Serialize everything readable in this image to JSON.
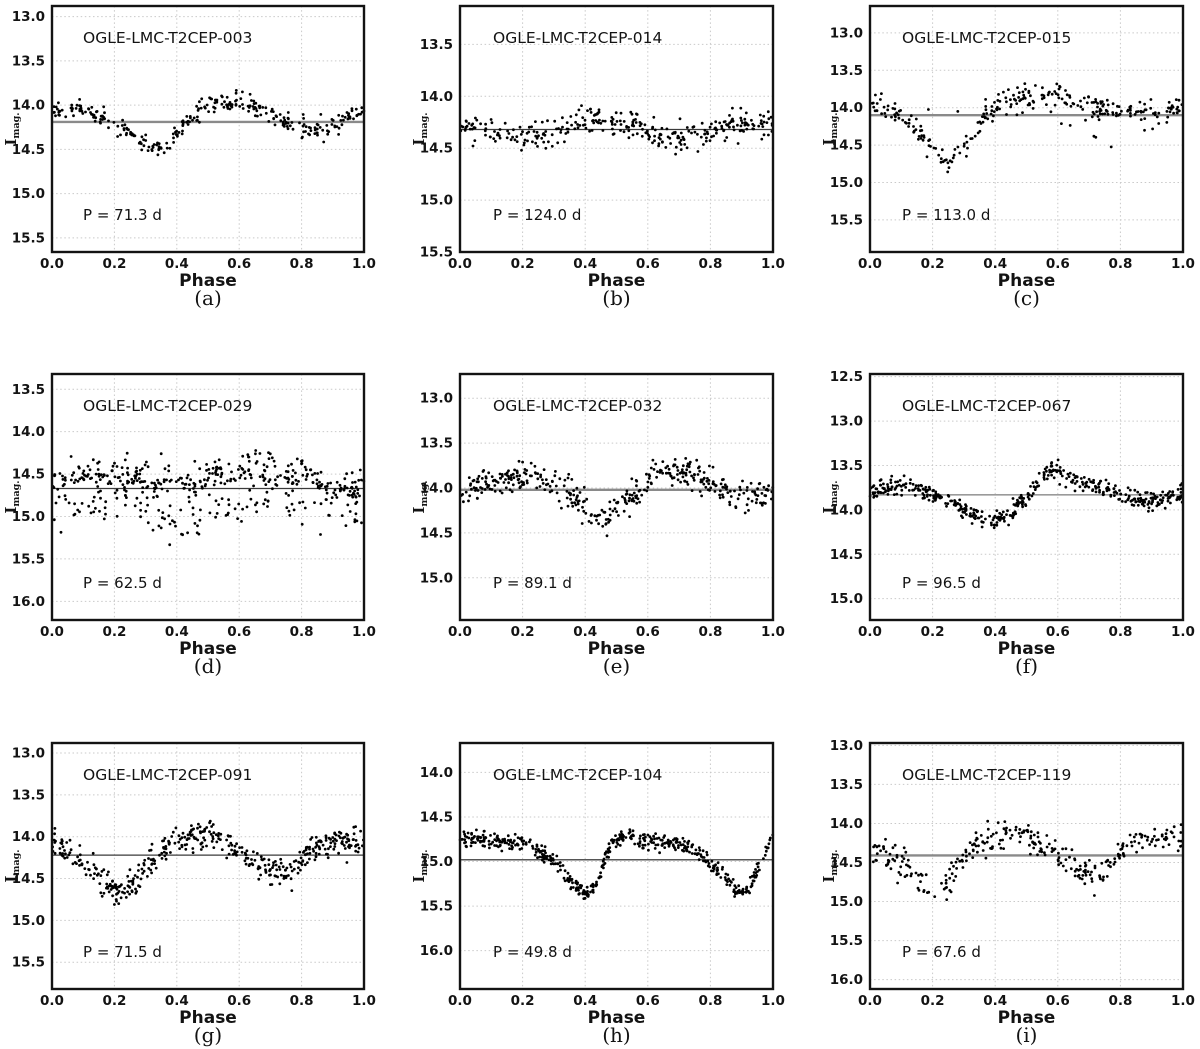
{
  "figure": {
    "background": "#ffffff",
    "colors": {
      "points": "#000000",
      "grid": "#c9c9c9",
      "frame": "#131313"
    }
  },
  "chart_data": {
    "type": "scatter",
    "description": "3x3 grid of phased I-band light curves of OGLE LMC Type II Cepheids; magnitude axis inverted (brighter up); gray horizontal line marks mean magnitude",
    "grid": true,
    "xlabel": "Phase",
    "ylabel_main": "I",
    "ylabel_sub": "mag.",
    "xlim": [
      0,
      1
    ],
    "xtick_labels": [
      "0.0",
      "0.2",
      "0.4",
      "0.6",
      "0.8",
      "1.0"
    ],
    "panels": [
      {
        "caption": "(a)",
        "title": "OGLE-LMC-T2CEP-003",
        "period_label": "P = 71.3 d",
        "period_days": 71.3,
        "ytick_labels": [
          "13.0",
          "13.5",
          "14.0",
          "14.5",
          "15.0",
          "15.5"
        ],
        "ylim": [
          12.88,
          15.66
        ],
        "mean_mag": 14.19,
        "mean_line": {
          "color": "#8a8a8a",
          "width": 2.4
        },
        "n_points": 310,
        "scatter_sigma": 0.055,
        "seed": 11,
        "mean_curve": [
          [
            0,
            14.07
          ],
          [
            0.06,
            14.04
          ],
          [
            0.12,
            14.08
          ],
          [
            0.18,
            14.16
          ],
          [
            0.24,
            14.3
          ],
          [
            0.3,
            14.44
          ],
          [
            0.34,
            14.48
          ],
          [
            0.38,
            14.42
          ],
          [
            0.42,
            14.25
          ],
          [
            0.46,
            14.1
          ],
          [
            0.5,
            14.0
          ],
          [
            0.55,
            13.93
          ],
          [
            0.6,
            13.98
          ],
          [
            0.66,
            14.05
          ],
          [
            0.72,
            14.15
          ],
          [
            0.78,
            14.25
          ],
          [
            0.84,
            14.3
          ],
          [
            0.88,
            14.27
          ],
          [
            0.92,
            14.18
          ],
          [
            0.96,
            14.1
          ],
          [
            1,
            14.07
          ]
        ]
      },
      {
        "caption": "(b)",
        "title": "OGLE-LMC-T2CEP-014",
        "period_label": "P = 124.0 d",
        "period_days": 124.0,
        "ytick_labels": [
          "13.5",
          "14.0",
          "14.5",
          "15.0",
          "15.5"
        ],
        "ylim": [
          13.13,
          15.5
        ],
        "mean_mag": 14.32,
        "mean_line": {
          "color": "#3a3a3a",
          "width": 1.2
        },
        "n_points": 320,
        "scatter_sigma": 0.07,
        "seed": 22,
        "mean_curve": [
          [
            0,
            14.3
          ],
          [
            0.08,
            14.33
          ],
          [
            0.15,
            14.38
          ],
          [
            0.22,
            14.4
          ],
          [
            0.3,
            14.33
          ],
          [
            0.36,
            14.27
          ],
          [
            0.42,
            14.22
          ],
          [
            0.48,
            14.25
          ],
          [
            0.54,
            14.28
          ],
          [
            0.6,
            14.35
          ],
          [
            0.66,
            14.42
          ],
          [
            0.72,
            14.42
          ],
          [
            0.78,
            14.35
          ],
          [
            0.85,
            14.28
          ],
          [
            0.92,
            14.25
          ],
          [
            1,
            14.26
          ]
        ]
      },
      {
        "caption": "(c)",
        "title": "OGLE-LMC-T2CEP-015",
        "period_label": "P = 113.0 d",
        "period_days": 113.0,
        "ytick_labels": [
          "13.0",
          "13.5",
          "14.0",
          "14.5",
          "15.0",
          "15.5"
        ],
        "ylim": [
          12.64,
          15.93
        ],
        "mean_mag": 14.1,
        "mean_line": {
          "color": "#8a8a8a",
          "width": 2.4
        },
        "n_points": 270,
        "scatter_sigma": 0.07,
        "seed": 33,
        "mean_curve": [
          [
            0,
            14.0
          ],
          [
            0.05,
            14.03
          ],
          [
            0.1,
            14.1
          ],
          [
            0.15,
            14.28
          ],
          [
            0.2,
            14.55
          ],
          [
            0.24,
            14.7
          ],
          [
            0.28,
            14.62
          ],
          [
            0.32,
            14.42
          ],
          [
            0.36,
            14.15
          ],
          [
            0.4,
            13.98
          ],
          [
            0.44,
            13.86
          ],
          [
            0.5,
            13.8
          ],
          [
            0.56,
            13.82
          ],
          [
            0.62,
            13.88
          ],
          [
            0.68,
            13.95
          ],
          [
            0.74,
            14.02
          ],
          [
            0.8,
            14.03
          ],
          [
            0.86,
            14.02
          ],
          [
            0.92,
            14.02
          ],
          [
            1,
            13.98
          ]
        ],
        "extra": {
          "mean_curve": [
            [
              0.58,
              14.05
            ],
            [
              0.66,
              14.25
            ],
            [
              0.72,
              14.4
            ],
            [
              0.78,
              14.48
            ],
            [
              0.84,
              14.38
            ],
            [
              0.9,
              14.2
            ]
          ],
          "scatter_sigma": 0.05,
          "n_points": 20
        }
      },
      {
        "caption": "(d)",
        "title": "OGLE-LMC-T2CEP-029",
        "period_label": "P = 62.5 d",
        "period_days": 62.5,
        "ytick_labels": [
          "13.5",
          "14.0",
          "14.5",
          "15.0",
          "15.5",
          "16.0"
        ],
        "ylim": [
          13.32,
          16.22
        ],
        "mean_mag": 14.67,
        "mean_line": {
          "color": "#3a3a3a",
          "width": 1.2
        },
        "n_points": 340,
        "scatter_sigma": 0.1,
        "seed": 44,
        "mean_curve": [
          [
            0,
            14.6
          ],
          [
            0.06,
            14.53
          ],
          [
            0.12,
            14.5
          ],
          [
            0.18,
            14.5
          ],
          [
            0.24,
            14.52
          ],
          [
            0.3,
            14.55
          ],
          [
            0.36,
            14.6
          ],
          [
            0.42,
            14.62
          ],
          [
            0.48,
            14.6
          ],
          [
            0.54,
            14.52
          ],
          [
            0.6,
            14.42
          ],
          [
            0.66,
            14.4
          ],
          [
            0.72,
            14.45
          ],
          [
            0.78,
            14.5
          ],
          [
            0.84,
            14.55
          ],
          [
            0.9,
            14.65
          ],
          [
            0.96,
            14.68
          ],
          [
            1,
            14.65
          ]
        ],
        "extra": {
          "mean_curve": [
            [
              0,
              15.0
            ],
            [
              0.08,
              14.95
            ],
            [
              0.16,
              14.8
            ],
            [
              0.24,
              14.85
            ],
            [
              0.32,
              14.95
            ],
            [
              0.4,
              15.05
            ],
            [
              0.46,
              15.05
            ],
            [
              0.52,
              14.95
            ],
            [
              0.6,
              14.8
            ],
            [
              0.7,
              14.78
            ],
            [
              0.8,
              14.85
            ],
            [
              0.9,
              14.95
            ],
            [
              1,
              15.0
            ]
          ],
          "scatter_sigma": 0.12,
          "n_points": 130
        }
      },
      {
        "caption": "(e)",
        "title": "OGLE-LMC-T2CEP-032",
        "period_label": "P = 89.1 d",
        "period_days": 89.1,
        "ytick_labels": [
          "13.0",
          "13.5",
          "14.0",
          "14.5",
          "15.0"
        ],
        "ylim": [
          12.73,
          15.47
        ],
        "mean_mag": 14.02,
        "mean_line": {
          "color": "#8a8a8a",
          "width": 2.4
        },
        "n_points": 390,
        "scatter_sigma": 0.08,
        "seed": 55,
        "mean_curve": [
          [
            0,
            14.05
          ],
          [
            0.05,
            14.0
          ],
          [
            0.1,
            13.93
          ],
          [
            0.16,
            13.88
          ],
          [
            0.22,
            13.87
          ],
          [
            0.27,
            13.92
          ],
          [
            0.32,
            14.0
          ],
          [
            0.37,
            14.12
          ],
          [
            0.42,
            14.3
          ],
          [
            0.45,
            14.35
          ],
          [
            0.49,
            14.28
          ],
          [
            0.53,
            14.15
          ],
          [
            0.57,
            14.0
          ],
          [
            0.62,
            13.85
          ],
          [
            0.67,
            13.8
          ],
          [
            0.72,
            13.82
          ],
          [
            0.77,
            13.87
          ],
          [
            0.82,
            13.95
          ],
          [
            0.87,
            14.02
          ],
          [
            0.92,
            14.08
          ],
          [
            0.96,
            14.1
          ],
          [
            1,
            14.07
          ]
        ]
      },
      {
        "caption": "(f)",
        "title": "OGLE-LMC-T2CEP-067",
        "period_label": "P = 96.5 d",
        "period_days": 96.5,
        "ytick_labels": [
          "12.5",
          "13.0",
          "13.5",
          "14.0",
          "14.5",
          "15.0"
        ],
        "ylim": [
          12.47,
          15.24
        ],
        "mean_mag": 13.83,
        "mean_line": {
          "color": "#9a9a9a",
          "width": 1.6
        },
        "n_points": 460,
        "scatter_sigma": 0.05,
        "seed": 66,
        "mean_curve": [
          [
            0,
            13.8
          ],
          [
            0.05,
            13.76
          ],
          [
            0.1,
            13.73
          ],
          [
            0.15,
            13.76
          ],
          [
            0.2,
            13.82
          ],
          [
            0.25,
            13.9
          ],
          [
            0.3,
            14.0
          ],
          [
            0.35,
            14.1
          ],
          [
            0.38,
            14.13
          ],
          [
            0.42,
            14.1
          ],
          [
            0.46,
            14.0
          ],
          [
            0.5,
            13.85
          ],
          [
            0.54,
            13.67
          ],
          [
            0.58,
            13.55
          ],
          [
            0.62,
            13.6
          ],
          [
            0.67,
            13.67
          ],
          [
            0.72,
            13.72
          ],
          [
            0.77,
            13.78
          ],
          [
            0.82,
            13.87
          ],
          [
            0.87,
            13.91
          ],
          [
            0.92,
            13.88
          ],
          [
            0.96,
            13.85
          ],
          [
            1,
            13.82
          ]
        ]
      },
      {
        "caption": "(g)",
        "title": "OGLE-LMC-T2CEP-091",
        "period_label": "P = 71.5 d",
        "period_days": 71.5,
        "ytick_labels": [
          "13.0",
          "13.5",
          "14.0",
          "14.5",
          "15.0",
          "15.5"
        ],
        "ylim": [
          12.88,
          15.82
        ],
        "mean_mag": 14.22,
        "mean_line": {
          "color": "#3a3a3a",
          "width": 1.2
        },
        "n_points": 440,
        "scatter_sigma": 0.08,
        "seed": 77,
        "mean_curve": [
          [
            0,
            14.1
          ],
          [
            0.05,
            14.17
          ],
          [
            0.1,
            14.3
          ],
          [
            0.15,
            14.48
          ],
          [
            0.2,
            14.63
          ],
          [
            0.23,
            14.68
          ],
          [
            0.27,
            14.55
          ],
          [
            0.31,
            14.35
          ],
          [
            0.35,
            14.18
          ],
          [
            0.4,
            14.05
          ],
          [
            0.45,
            13.98
          ],
          [
            0.5,
            14.0
          ],
          [
            0.55,
            14.07
          ],
          [
            0.6,
            14.17
          ],
          [
            0.65,
            14.3
          ],
          [
            0.7,
            14.4
          ],
          [
            0.75,
            14.42
          ],
          [
            0.8,
            14.3
          ],
          [
            0.84,
            14.15
          ],
          [
            0.88,
            14.08
          ],
          [
            0.93,
            14.05
          ],
          [
            1,
            14.07
          ]
        ]
      },
      {
        "caption": "(h)",
        "title": "OGLE-LMC-T2CEP-104",
        "period_label": "P = 49.8 d",
        "period_days": 49.8,
        "ytick_labels": [
          "14.0",
          "14.5",
          "15.0",
          "15.5",
          "16.0"
        ],
        "ylim": [
          13.67,
          16.43
        ],
        "mean_mag": 14.98,
        "mean_line": {
          "color": "#555555",
          "width": 1.5
        },
        "n_points": 500,
        "scatter_sigma": 0.045,
        "seed": 88,
        "mean_curve": [
          [
            0,
            14.72
          ],
          [
            0.06,
            14.75
          ],
          [
            0.12,
            14.77
          ],
          [
            0.18,
            14.78
          ],
          [
            0.24,
            14.85
          ],
          [
            0.3,
            15.0
          ],
          [
            0.34,
            15.15
          ],
          [
            0.38,
            15.32
          ],
          [
            0.41,
            15.35
          ],
          [
            0.44,
            15.22
          ],
          [
            0.46,
            15.0
          ],
          [
            0.48,
            14.8
          ],
          [
            0.52,
            14.72
          ],
          [
            0.58,
            14.76
          ],
          [
            0.64,
            14.77
          ],
          [
            0.7,
            14.8
          ],
          [
            0.75,
            14.88
          ],
          [
            0.8,
            15.0
          ],
          [
            0.84,
            15.15
          ],
          [
            0.88,
            15.3
          ],
          [
            0.91,
            15.32
          ],
          [
            0.94,
            15.2
          ],
          [
            0.97,
            14.95
          ],
          [
            1,
            14.68
          ]
        ]
      },
      {
        "caption": "(i)",
        "title": "OGLE-LMC-T2CEP-119",
        "period_label": "P = 67.6 d",
        "period_days": 67.6,
        "ytick_labels": [
          "13.0",
          "13.5",
          "14.0",
          "14.5",
          "15.0",
          "15.5",
          "16.0"
        ],
        "ylim": [
          12.97,
          16.12
        ],
        "mean_mag": 14.41,
        "mean_line": {
          "color": "#8a8a8a",
          "width": 2.4
        },
        "n_points": 300,
        "scatter_sigma": 0.09,
        "seed": 99,
        "mean_curve": [
          [
            0,
            14.32
          ],
          [
            0.05,
            14.38
          ],
          [
            0.1,
            14.52
          ],
          [
            0.15,
            14.72
          ],
          [
            0.19,
            14.88
          ],
          [
            0.23,
            14.85
          ],
          [
            0.27,
            14.6
          ],
          [
            0.31,
            14.4
          ],
          [
            0.35,
            14.25
          ],
          [
            0.4,
            14.13
          ],
          [
            0.45,
            14.12
          ],
          [
            0.5,
            14.17
          ],
          [
            0.55,
            14.28
          ],
          [
            0.6,
            14.42
          ],
          [
            0.65,
            14.58
          ],
          [
            0.7,
            14.68
          ],
          [
            0.74,
            14.62
          ],
          [
            0.78,
            14.45
          ],
          [
            0.82,
            14.32
          ],
          [
            0.86,
            14.25
          ],
          [
            0.9,
            14.18
          ],
          [
            0.95,
            14.15
          ],
          [
            1,
            14.22
          ]
        ]
      }
    ]
  }
}
